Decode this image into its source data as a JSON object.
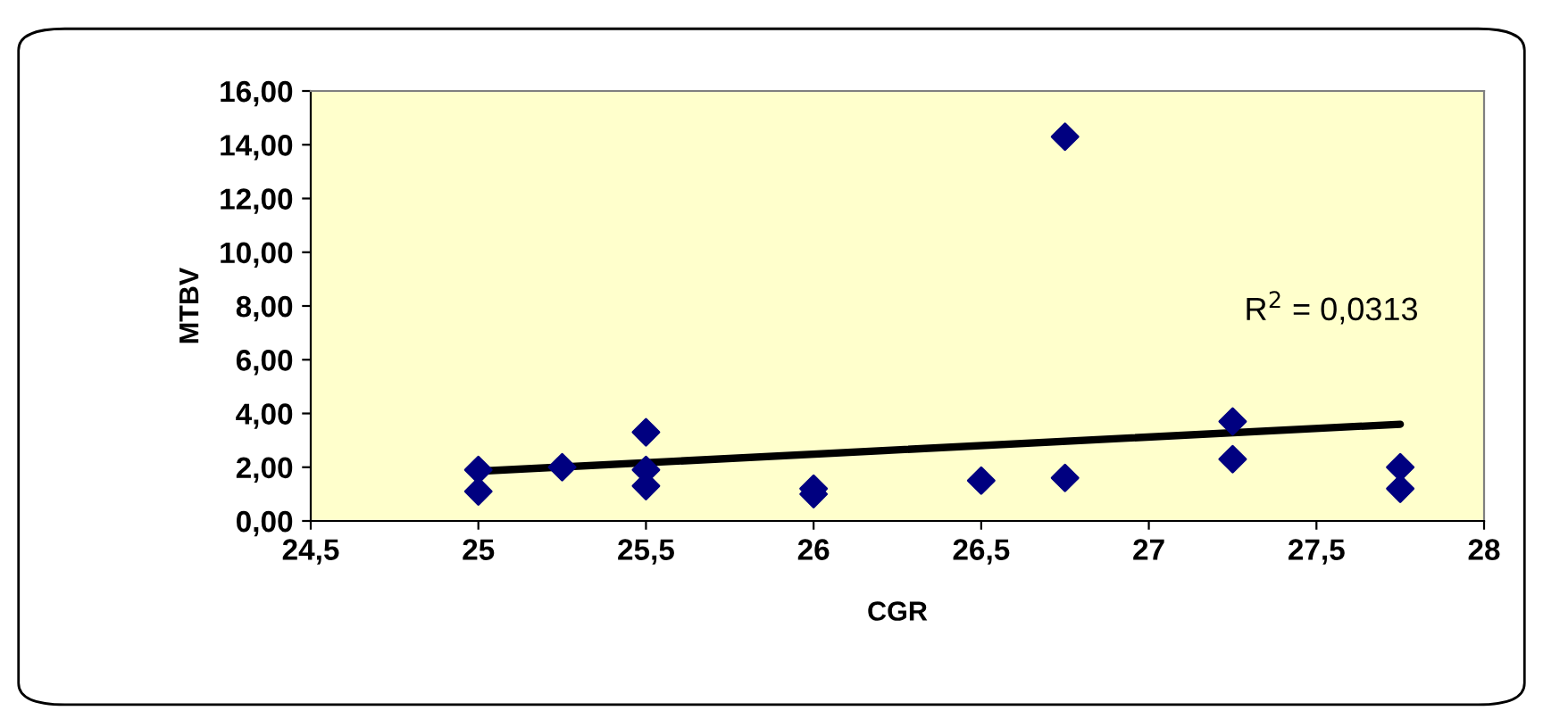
{
  "chart_data": {
    "type": "scatter",
    "xlabel": "CGR",
    "ylabel": "MTBV",
    "series": [
      {
        "type": "scatter",
        "color": "#000080",
        "marker": "diamond",
        "x": [
          25,
          25,
          25.25,
          25.5,
          25.5,
          25.5,
          26,
          26,
          26.5,
          26.75,
          26.75,
          27.25,
          27.25,
          27.75,
          27.75
        ],
        "values": [
          1.1,
          1.9,
          2.0,
          3.3,
          1.9,
          1.3,
          1.0,
          1.2,
          1.5,
          14.3,
          1.6,
          3.7,
          2.3,
          2.0,
          1.2
        ]
      },
      {
        "type": "line",
        "color": "#000000",
        "x": [
          25,
          27.75
        ],
        "values": [
          1.85,
          3.6
        ]
      }
    ],
    "annotations": [
      "R$^{2}$ = 0,0313"
    ],
    "xlim": [
      24.5,
      28
    ],
    "ylim": [
      0,
      16
    ],
    "xticks": [
      {
        "value": 24.5,
        "label": "24,5"
      },
      25,
      {
        "value": 25.5,
        "label": "25,5"
      },
      26,
      {
        "value": 26.5,
        "label": "26,5"
      },
      27,
      {
        "value": 27.5,
        "label": "27,5"
      },
      28
    ],
    "yticks": [
      {
        "value": 0,
        "label": "0,00"
      },
      {
        "value": 2,
        "label": "2,00"
      },
      {
        "value": 4,
        "label": "4,00"
      },
      {
        "value": 6,
        "label": "6,00"
      },
      {
        "value": 8,
        "label": "8,00"
      },
      {
        "value": 10,
        "label": "10,00"
      },
      {
        "value": 12,
        "label": "12,00"
      },
      {
        "value": 14,
        "label": "14,00"
      },
      {
        "value": 16,
        "label": "16,00"
      }
    ],
    "grid": false,
    "legend": false
  }
}
